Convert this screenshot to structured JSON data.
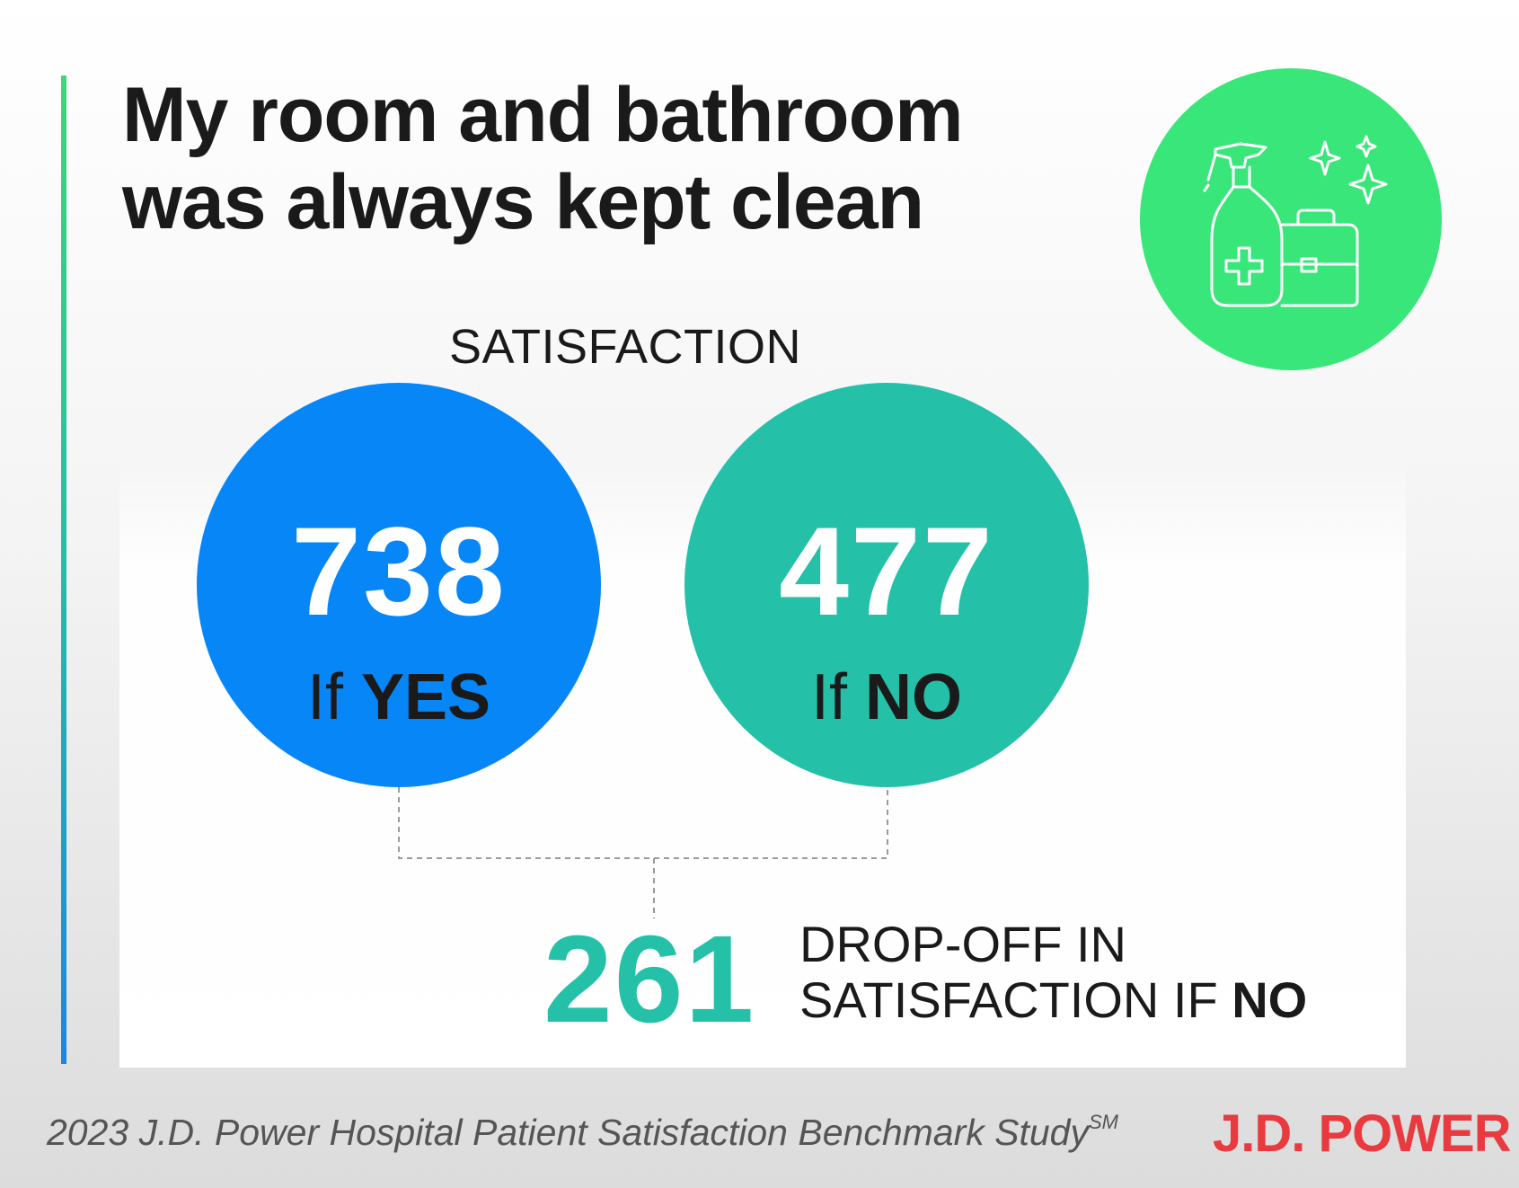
{
  "title": {
    "line1": "My room and bathroom",
    "line2": "was always kept clean"
  },
  "icon": "cleaning-supplies-icon",
  "satisfaction_label": "SATISFACTION",
  "yes": {
    "value": "738",
    "caption_lead": "If ",
    "caption_strong": "YES"
  },
  "no": {
    "value": "477",
    "caption_lead": "If ",
    "caption_strong": "NO"
  },
  "dropoff": {
    "value": "261",
    "line1": "DROP-OFF IN",
    "line2_lead": "SATISFACTION IF ",
    "line2_strong": "NO"
  },
  "footer": {
    "study": "2023 J.D. Power Hospital Patient Satisfaction Benchmark Study",
    "study_mark": "SM",
    "brand": "J.D. POWER"
  },
  "colors": {
    "yes_circle": "#0686f7",
    "no_circle": "#25c0a8",
    "icon_circle": "#39e679",
    "brand": "#e83a3f"
  }
}
